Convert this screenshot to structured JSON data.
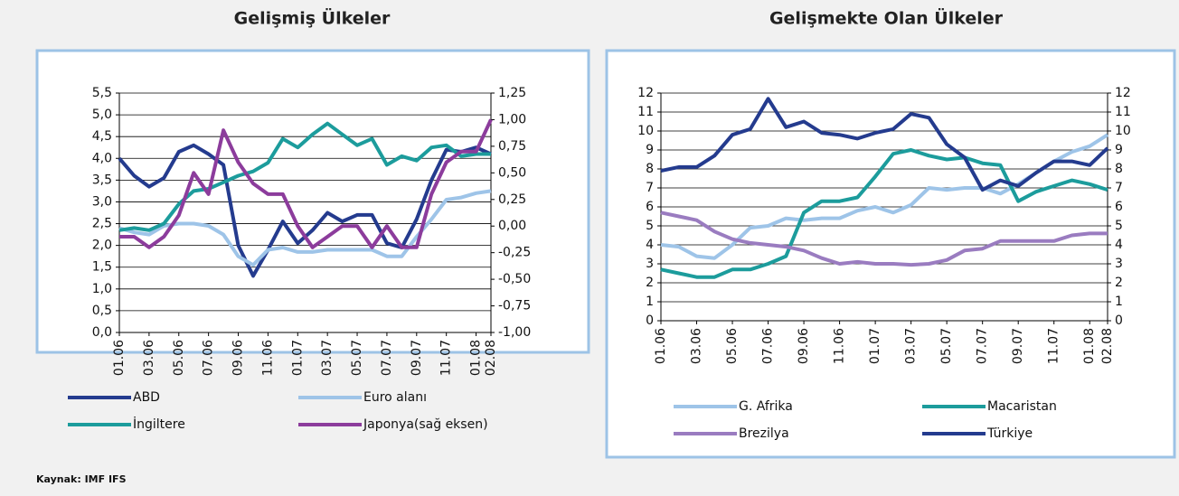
{
  "chart_data": [
    {
      "type": "line",
      "title": "Gelişmiş Ülkeler",
      "categories": [
        "01.06",
        null,
        "03.06",
        null,
        "05.06",
        null,
        "07.06",
        null,
        "09.06",
        null,
        "11.06",
        null,
        "01.07",
        null,
        "03.07",
        null,
        "05.07",
        null,
        "07.07",
        null,
        "09.07",
        null,
        "11.07",
        null,
        "01.08",
        "02.08"
      ],
      "ylim": [
        0,
        5.5
      ],
      "yticks": [
        {
          "value": 0,
          "label": "0,0"
        },
        {
          "value": 0.5,
          "label": "0,5"
        },
        {
          "value": 1,
          "label": "1,0"
        },
        {
          "value": 1.5,
          "label": "1,5"
        },
        {
          "value": 2,
          "label": "2,0"
        },
        {
          "value": 2.5,
          "label": "2,5"
        },
        {
          "value": 3,
          "label": "3,0"
        },
        {
          "value": 3.5,
          "label": "3,5"
        },
        {
          "value": 4,
          "label": "4,0"
        },
        {
          "value": 4.5,
          "label": "4,5"
        },
        {
          "value": 5,
          "label": "5,0"
        },
        {
          "value": 5.5,
          "label": "5,5"
        }
      ],
      "y2lim": [
        -1,
        1.25
      ],
      "y2ticks": [
        {
          "value": -1,
          "label": "-1,00"
        },
        {
          "value": -0.75,
          "label": "-0,75"
        },
        {
          "value": -0.5,
          "label": "-0,50"
        },
        {
          "value": -0.25,
          "label": "-0,25"
        },
        {
          "value": 0,
          "label": "0,00"
        },
        {
          "value": 0.25,
          "label": "0,25"
        },
        {
          "value": 0.5,
          "label": "0,50"
        },
        {
          "value": 0.75,
          "label": "0,75"
        },
        {
          "value": 1,
          "label": "1,00"
        },
        {
          "value": 1.25,
          "label": "1,25"
        }
      ],
      "grid": true,
      "legend": "bottom",
      "series": [
        {
          "name": "ABD",
          "color": "#243b8e",
          "values": [
            4.0,
            3.6,
            3.35,
            3.55,
            4.15,
            4.3,
            4.1,
            3.85,
            2.0,
            1.3,
            1.9,
            2.55,
            2.05,
            2.35,
            2.75,
            2.55,
            2.7,
            2.7,
            2.05,
            1.95,
            2.6,
            3.5,
            4.2,
            4.15,
            4.25,
            4.1
          ]
        },
        {
          "name": "Euro alanı",
          "color": "#9ec4e8",
          "values": [
            2.4,
            2.3,
            2.25,
            2.45,
            2.5,
            2.5,
            2.45,
            2.25,
            1.75,
            1.55,
            1.9,
            1.95,
            1.85,
            1.85,
            1.9,
            1.9,
            1.9,
            1.9,
            1.75,
            1.75,
            2.2,
            2.6,
            3.05,
            3.1,
            3.2,
            3.25
          ]
        },
        {
          "name": "İngiltere",
          "color": "#1c9c9c",
          "values": [
            2.35,
            2.4,
            2.35,
            2.5,
            2.95,
            3.25,
            3.3,
            3.45,
            3.6,
            3.7,
            3.9,
            4.45,
            4.25,
            4.55,
            4.8,
            4.55,
            4.3,
            4.45,
            3.85,
            4.05,
            3.95,
            4.25,
            4.3,
            4.05,
            4.1,
            4.1
          ]
        },
        {
          "name": "Japonya(sağ eksen)",
          "color": "#8c3c9c",
          "axis": "y2",
          "values": [
            -0.1,
            -0.1,
            -0.2,
            -0.1,
            0.1,
            0.5,
            0.3,
            0.9,
            0.6,
            0.4,
            0.3,
            0.3,
            0.0,
            -0.2,
            -0.1,
            0.0,
            0.0,
            -0.2,
            0.0,
            -0.2,
            -0.2,
            0.3,
            0.6,
            0.7,
            0.7,
            1.0
          ]
        }
      ]
    },
    {
      "type": "line",
      "title": "Gelişmekte Olan Ülkeler",
      "categories": [
        "01.06",
        null,
        "03.06",
        null,
        "05.06",
        null,
        "07.06",
        null,
        "09.06",
        null,
        "11.06",
        null,
        "01.07",
        null,
        "03.07",
        null,
        "05.07",
        null,
        "07.07",
        null,
        "09.07",
        null,
        "11.07",
        null,
        "01.08",
        "02.08"
      ],
      "ylim": [
        0,
        12
      ],
      "yticks": [
        0,
        1,
        2,
        3,
        4,
        5,
        6,
        7,
        8,
        9,
        10,
        11,
        12
      ],
      "y2lim": [
        0,
        12
      ],
      "y2ticks": [
        0,
        1,
        2,
        3,
        4,
        5,
        6,
        7,
        8,
        9,
        10,
        11,
        12
      ],
      "grid": true,
      "legend": "bottom",
      "series": [
        {
          "name": "G. Afrika",
          "color": "#9ec4e8",
          "values": [
            4.0,
            3.9,
            3.4,
            3.3,
            4.0,
            4.9,
            5.0,
            5.4,
            5.3,
            5.4,
            5.4,
            5.8,
            6.0,
            5.7,
            6.1,
            7.0,
            6.9,
            7.0,
            7.0,
            6.7,
            7.2,
            7.8,
            8.4,
            8.9,
            9.2,
            9.8
          ]
        },
        {
          "name": "Macaristan",
          "color": "#1c9c9c",
          "values": [
            2.7,
            2.5,
            2.3,
            2.3,
            2.7,
            2.7,
            3.0,
            3.4,
            5.7,
            6.3,
            6.3,
            6.5,
            7.6,
            8.8,
            9.0,
            8.7,
            8.5,
            8.6,
            8.3,
            8.2,
            6.3,
            6.8,
            7.1,
            7.4,
            7.2,
            6.9
          ]
        },
        {
          "name": "Brezilya",
          "color": "#9a7cc0",
          "values": [
            5.7,
            5.5,
            5.3,
            4.7,
            4.3,
            4.1,
            4.0,
            3.9,
            3.7,
            3.3,
            3.0,
            3.1,
            3.0,
            3.0,
            2.95,
            3.0,
            3.2,
            3.7,
            3.8,
            4.2,
            4.2,
            4.2,
            4.2,
            4.5,
            4.6,
            4.6
          ]
        },
        {
          "name": "Türkiye",
          "color": "#243b8e",
          "values": [
            7.9,
            8.1,
            8.1,
            8.7,
            9.8,
            10.1,
            11.7,
            10.2,
            10.5,
            9.9,
            9.8,
            9.6,
            9.9,
            10.1,
            10.9,
            10.7,
            9.3,
            8.6,
            6.9,
            7.4,
            7.1,
            7.8,
            8.4,
            8.4,
            8.2,
            9.1
          ]
        }
      ]
    }
  ],
  "source": "Kaynak: IMF IFS"
}
